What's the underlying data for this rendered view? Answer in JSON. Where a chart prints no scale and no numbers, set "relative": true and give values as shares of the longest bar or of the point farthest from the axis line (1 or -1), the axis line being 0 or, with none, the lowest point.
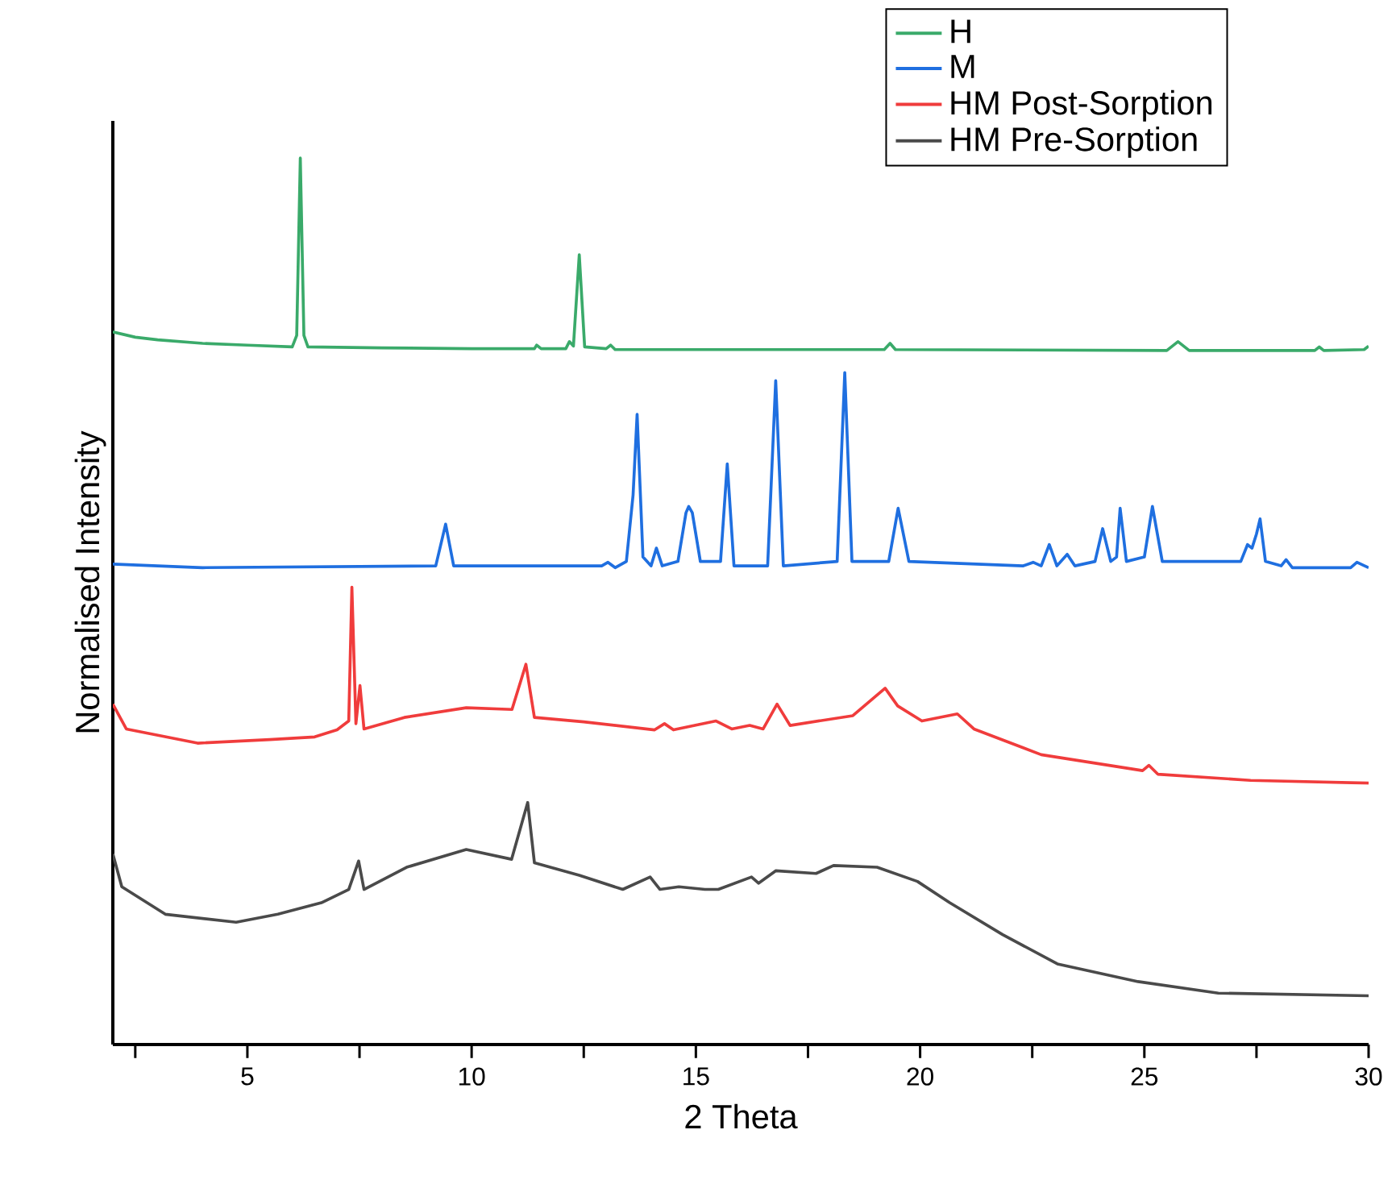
{
  "chart_data": {
    "type": "line",
    "relative": true,
    "xlabel": "2 Theta",
    "ylabel": "Normalised Intensity",
    "xlim": [
      2,
      30
    ],
    "xticks": [
      {
        "value": 2.5,
        "label": null
      },
      5,
      {
        "value": 7.5,
        "label": null
      },
      10,
      {
        "value": 12.5,
        "label": null
      },
      15,
      {
        "value": 17.5,
        "label": null
      },
      20,
      {
        "value": 22.5,
        "label": null
      },
      25,
      {
        "value": 27.5,
        "label": null
      },
      30
    ],
    "legend": "top right",
    "series": [
      {
        "name": "H",
        "color": "#3aaa6a",
        "x": [
          2,
          2.5,
          3,
          4,
          5,
          6.0,
          6.1,
          6.18,
          6.26,
          6.35,
          8,
          10,
          11.4,
          11.45,
          11.55,
          12.1,
          12.18,
          12.27,
          12.4,
          12.52,
          13.0,
          13.1,
          13.2,
          16,
          19.2,
          19.33,
          19.45,
          25.5,
          25.75,
          26.0,
          28.8,
          28.9,
          29.0,
          29.9,
          30
        ],
        "values": [
          0.804,
          0.798,
          0.795,
          0.791,
          0.789,
          0.787,
          0.8,
          1.0,
          0.8,
          0.787,
          0.786,
          0.785,
          0.785,
          0.789,
          0.785,
          0.785,
          0.793,
          0.788,
          0.891,
          0.787,
          0.785,
          0.789,
          0.784,
          0.784,
          0.784,
          0.791,
          0.784,
          0.783,
          0.793,
          0.783,
          0.783,
          0.787,
          0.783,
          0.784,
          0.788
        ]
      },
      {
        "name": "M",
        "color": "#1f6fe0",
        "x": [
          2,
          4,
          9.2,
          9.42,
          9.6,
          12.9,
          13.04,
          13.2,
          13.45,
          13.6,
          13.69,
          13.82,
          14.0,
          14.12,
          14.25,
          14.6,
          14.78,
          14.84,
          14.92,
          15.1,
          15.55,
          15.7,
          15.85,
          16.6,
          16.78,
          16.95,
          18.15,
          18.32,
          18.48,
          19.3,
          19.51,
          19.75,
          22.3,
          22.52,
          22.7,
          22.88,
          23.05,
          23.28,
          23.45,
          23.9,
          24.07,
          24.25,
          24.38,
          24.46,
          24.6,
          25.0,
          25.18,
          25.4,
          27.15,
          27.3,
          27.4,
          27.5,
          27.58,
          27.7,
          28.05,
          28.16,
          28.3,
          29.6,
          29.74,
          30
        ],
        "values": [
          0.542,
          0.538,
          0.54,
          0.587,
          0.54,
          0.54,
          0.544,
          0.538,
          0.545,
          0.62,
          0.711,
          0.55,
          0.54,
          0.56,
          0.54,
          0.545,
          0.6,
          0.607,
          0.6,
          0.545,
          0.545,
          0.655,
          0.54,
          0.54,
          0.749,
          0.54,
          0.545,
          0.758,
          0.545,
          0.545,
          0.605,
          0.545,
          0.54,
          0.544,
          0.54,
          0.564,
          0.54,
          0.553,
          0.54,
          0.545,
          0.582,
          0.545,
          0.55,
          0.605,
          0.545,
          0.55,
          0.607,
          0.545,
          0.545,
          0.564,
          0.56,
          0.576,
          0.593,
          0.545,
          0.54,
          0.547,
          0.538,
          0.538,
          0.544,
          0.538
        ]
      },
      {
        "name": "HM Post-Sorption",
        "color": "#f03c3c",
        "x": [
          2,
          2.3,
          3.89,
          5.5,
          6.5,
          7.0,
          7.26,
          7.33,
          7.42,
          7.51,
          7.6,
          8.5,
          9.88,
          10.9,
          11.21,
          11.4,
          12.5,
          14.08,
          14.3,
          14.5,
          15.45,
          15.8,
          16.2,
          16.5,
          16.81,
          17.1,
          18.5,
          19.22,
          19.5,
          20.04,
          20.83,
          21.2,
          22.7,
          24.96,
          25.1,
          25.3,
          27.37,
          30
        ],
        "values": [
          0.384,
          0.356,
          0.34,
          0.344,
          0.347,
          0.355,
          0.365,
          0.516,
          0.362,
          0.405,
          0.356,
          0.369,
          0.38,
          0.378,
          0.429,
          0.369,
          0.364,
          0.355,
          0.362,
          0.355,
          0.365,
          0.356,
          0.36,
          0.356,
          0.384,
          0.36,
          0.371,
          0.402,
          0.382,
          0.365,
          0.373,
          0.356,
          0.327,
          0.309,
          0.315,
          0.305,
          0.298,
          0.295
        ]
      },
      {
        "name": "HM Pre-Sorption",
        "color": "#4a4a4a",
        "x": [
          2,
          2.2,
          3.17,
          4.75,
          5.68,
          6.65,
          7.26,
          7.48,
          7.6,
          8.55,
          9.88,
          10.89,
          11.25,
          11.4,
          12.4,
          13.37,
          13.98,
          14.2,
          14.62,
          15.2,
          15.5,
          16.24,
          16.4,
          16.78,
          17.68,
          18.07,
          19.04,
          19.94,
          20.66,
          21.84,
          23.06,
          24.86,
          26.65,
          30
        ],
        "values": [
          0.215,
          0.178,
          0.147,
          0.138,
          0.147,
          0.16,
          0.175,
          0.207,
          0.175,
          0.2,
          0.22,
          0.209,
          0.273,
          0.205,
          0.191,
          0.175,
          0.189,
          0.175,
          0.178,
          0.175,
          0.175,
          0.189,
          0.182,
          0.196,
          0.193,
          0.202,
          0.2,
          0.184,
          0.16,
          0.124,
          0.091,
          0.071,
          0.058,
          0.055
        ]
      }
    ]
  }
}
